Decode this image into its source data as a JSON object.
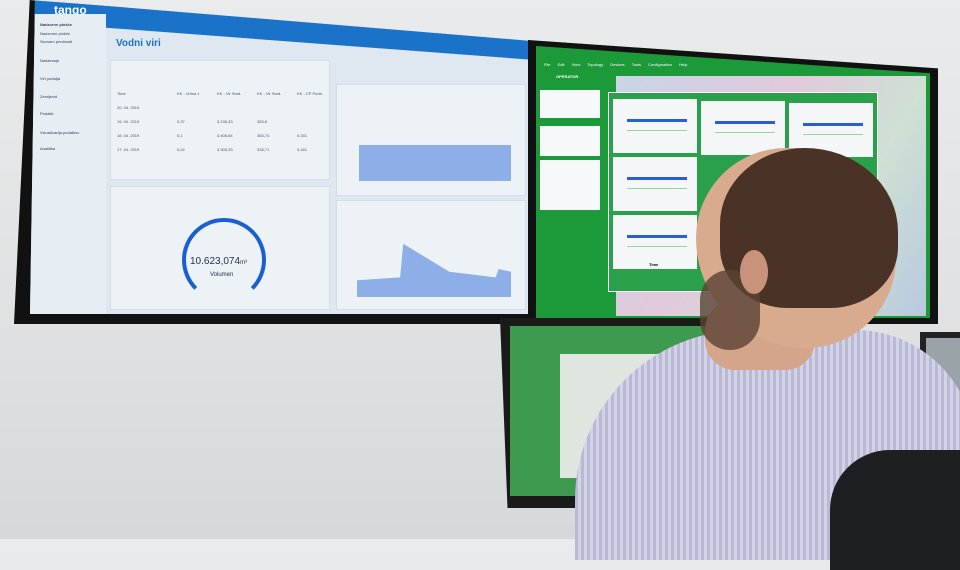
{
  "left_screen": {
    "app_logo": "tango",
    "page_title": "Vodni viri",
    "sidebar": [
      "Nadzorne plošče",
      "Nadzorne plošče",
      "Seznam prednosti",
      "Nadziranje",
      "Viri podatja",
      "Zemljevid",
      "Podatki",
      "Vizualizacija podatkov",
      "Analitika"
    ],
    "table": {
      "header": [
        "Time",
        "KK - Vrtina 1",
        "KK - Vir Sred.",
        "KK - Vir Sred.",
        "KK - CP Podb."
      ],
      "rows": [
        [
          "20. 04. 2019",
          "",
          "",
          "",
          ""
        ],
        [
          "19. 04. 2019",
          "0,37",
          "3.135,33",
          "355,6",
          ""
        ],
        [
          "18. 04. 2019",
          "0,1",
          "3.408,84",
          "355,74",
          "0,151"
        ],
        [
          "17. 04. 2019",
          "0,02",
          "3.305,33",
          "338,71",
          "0,161"
        ]
      ]
    },
    "gauge": {
      "value": "10.623,074",
      "unit": "m³",
      "label": "Volumen"
    },
    "accent": "#1a73c8"
  },
  "right_screen": {
    "app_name": "OPERATOR",
    "menu": [
      "File",
      "Edit",
      "View",
      "Topology",
      "Devices",
      "Tools",
      "Configuration",
      "Help"
    ],
    "plot_axis_label": "Time",
    "accent": "#1c9a3a"
  }
}
